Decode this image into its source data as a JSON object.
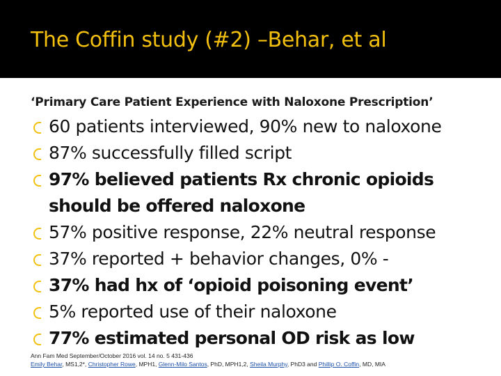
{
  "title": "The Coffin study (#2) –Behar, et al",
  "subtitle": "‘Primary Care Patient Experience with Naloxone Prescription’",
  "bullets": [
    {
      "text": "60 patients interviewed, 90% new to naloxone",
      "bold": false
    },
    {
      "text": "87% successfully filled script",
      "bold": false
    },
    {
      "text": "97% believed patients Rx chronic opioids should be offered naloxone",
      "bold": true
    },
    {
      "text": "57% positive response, 22% neutral response",
      "bold": false
    },
    {
      "text": "37% reported + behavior changes, 0% -",
      "bold": false
    },
    {
      "text": "37% had hx of ‘opioid poisoning event’",
      "bold": true
    },
    {
      "text": "5% reported use of their naloxone",
      "bold": false
    },
    {
      "text": "77% estimated personal OD risk as low",
      "bold": true
    }
  ],
  "citation": {
    "journal_line": "Ann Fam Med September/October 2016 vol. 14 no. 5 431-436",
    "authors": [
      {
        "name": "Emily Behar",
        "suffix": ", MS1,2*, "
      },
      {
        "name": "Christopher Rowe",
        "suffix": ", MPH1, "
      },
      {
        "name": "Glenn-Milo Santos",
        "suffix": ", PhD, MPH1,2, "
      },
      {
        "name": "Sheila Murphy",
        "suffix": ", PhD3 and "
      },
      {
        "name": "Phillip O. Coffin",
        "suffix": ", MD, MIA"
      }
    ]
  },
  "colors": {
    "title_bar": "#000000",
    "accent": "#f3c00f",
    "link": "#1b4fa8"
  },
  "icons": {
    "bullet": "yellow-arc-bullet-icon"
  }
}
